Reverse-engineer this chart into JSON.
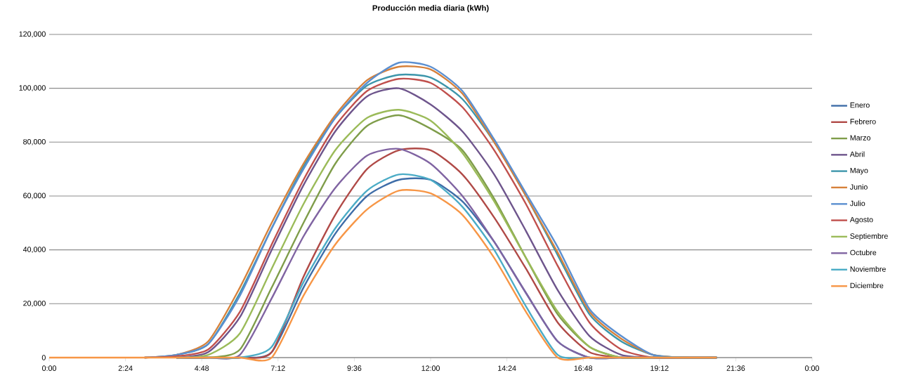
{
  "chart_data": {
    "type": "line",
    "title": "Producción media diaria (kWh)",
    "x": [
      0,
      1,
      2,
      3,
      4,
      5,
      6,
      7,
      8,
      9,
      10,
      11,
      12,
      13,
      14,
      15,
      16,
      17,
      18,
      19,
      20,
      21
    ],
    "xlim": [
      0,
      24
    ],
    "xticks": [
      {
        "value": 0,
        "label": "0:00"
      },
      {
        "value": 2.4,
        "label": "2:24"
      },
      {
        "value": 4.8,
        "label": "4:48"
      },
      {
        "value": 7.2,
        "label": "7:12"
      },
      {
        "value": 9.6,
        "label": "9:36"
      },
      {
        "value": 12,
        "label": "12:00"
      },
      {
        "value": 14.4,
        "label": "14:24"
      },
      {
        "value": 16.8,
        "label": "16:48"
      },
      {
        "value": 19.2,
        "label": "19:12"
      },
      {
        "value": 21.6,
        "label": "21:36"
      },
      {
        "value": 24,
        "label": "0:00"
      }
    ],
    "ylim": [
      0,
      120000
    ],
    "yticks": [
      0,
      {
        "value": 20000,
        "label": "20,000"
      },
      {
        "value": 40000,
        "label": "40,000"
      },
      {
        "value": 60000,
        "label": "60,000"
      },
      {
        "value": 80000,
        "label": "80,000"
      },
      {
        "value": 100000,
        "label": "100,000"
      },
      {
        "value": 120000,
        "label": "120,000"
      }
    ],
    "grid": "y",
    "legend": "right",
    "line_style": "solid",
    "series": [
      {
        "name": "Enero",
        "color": "#3e6da8",
        "values": [
          null,
          null,
          null,
          null,
          0,
          0,
          0,
          2000,
          26000,
          46000,
          60000,
          66000,
          66000,
          58000,
          43000,
          24000,
          6000,
          0,
          0,
          0,
          0,
          0
        ]
      },
      {
        "name": "Febrero",
        "color": "#b04a47",
        "values": [
          null,
          null,
          null,
          null,
          0,
          0,
          0,
          2000,
          30000,
          53000,
          70000,
          77000,
          77000,
          68000,
          52000,
          33000,
          13000,
          2000,
          0,
          0,
          0,
          0
        ]
      },
      {
        "name": "Marzo",
        "color": "#7f9d4a",
        "values": [
          null,
          null,
          null,
          null,
          0,
          0,
          3000,
          26000,
          50000,
          72000,
          86000,
          90000,
          85000,
          77000,
          59000,
          37000,
          16000,
          4000,
          0,
          0,
          0,
          0
        ]
      },
      {
        "name": "Abril",
        "color": "#6e558c",
        "values": [
          null,
          null,
          null,
          null,
          0,
          2000,
          15000,
          40000,
          64000,
          84000,
          97000,
          100000,
          94000,
          84000,
          68000,
          47000,
          25000,
          8000,
          1000,
          0,
          0,
          0
        ]
      },
      {
        "name": "Mayo",
        "color": "#3d96ab",
        "values": [
          null,
          null,
          null,
          0,
          1000,
          5000,
          24000,
          48000,
          71000,
          89000,
          101000,
          105000,
          104000,
          96000,
          80000,
          60000,
          38000,
          16000,
          6000,
          1000,
          0,
          0
        ]
      },
      {
        "name": "Junio",
        "color": "#d6813b",
        "values": [
          null,
          null,
          null,
          0,
          1000,
          6000,
          26000,
          50000,
          72000,
          90000,
          103000,
          108000,
          107000,
          98000,
          80000,
          60000,
          39000,
          17000,
          7000,
          1000,
          0,
          0
        ]
      },
      {
        "name": "Julio",
        "color": "#5b8fd0",
        "values": [
          null,
          null,
          null,
          0,
          1000,
          5000,
          23000,
          48000,
          70000,
          89000,
          102000,
          109500,
          108000,
          99000,
          81000,
          61000,
          41000,
          18000,
          8000,
          1000,
          0,
          0
        ]
      },
      {
        "name": "Agosto",
        "color": "#c0504d",
        "values": [
          null,
          null,
          null,
          0,
          500,
          3000,
          17000,
          42000,
          66000,
          86000,
          99000,
          103500,
          102000,
          93000,
          77000,
          57000,
          34000,
          13000,
          3000,
          0,
          0,
          0
        ]
      },
      {
        "name": "Septiembre",
        "color": "#9bbb59",
        "values": [
          null,
          null,
          null,
          null,
          0,
          1000,
          9000,
          33000,
          57000,
          77000,
          89000,
          92000,
          88000,
          76000,
          58000,
          37000,
          17000,
          4000,
          0,
          0,
          0,
          0
        ]
      },
      {
        "name": "Octubre",
        "color": "#8064a2",
        "values": [
          null,
          null,
          null,
          null,
          0,
          0,
          1000,
          22000,
          45000,
          63000,
          75000,
          77500,
          72000,
          60000,
          43000,
          24000,
          6000,
          0,
          0,
          0,
          0,
          0
        ]
      },
      {
        "name": "Noviembre",
        "color": "#4bacc6",
        "values": [
          null,
          null,
          null,
          null,
          0,
          0,
          0,
          4000,
          28000,
          48000,
          62000,
          68000,
          66000,
          56000,
          40000,
          19000,
          1000,
          0,
          0,
          0,
          0,
          0
        ]
      },
      {
        "name": "Diciembre",
        "color": "#f79646",
        "values": [
          0,
          0,
          0,
          0,
          0,
          0,
          0,
          0,
          23000,
          42000,
          55000,
          62000,
          61000,
          53000,
          37000,
          17000,
          0,
          0,
          0,
          0,
          0,
          0
        ]
      }
    ]
  }
}
